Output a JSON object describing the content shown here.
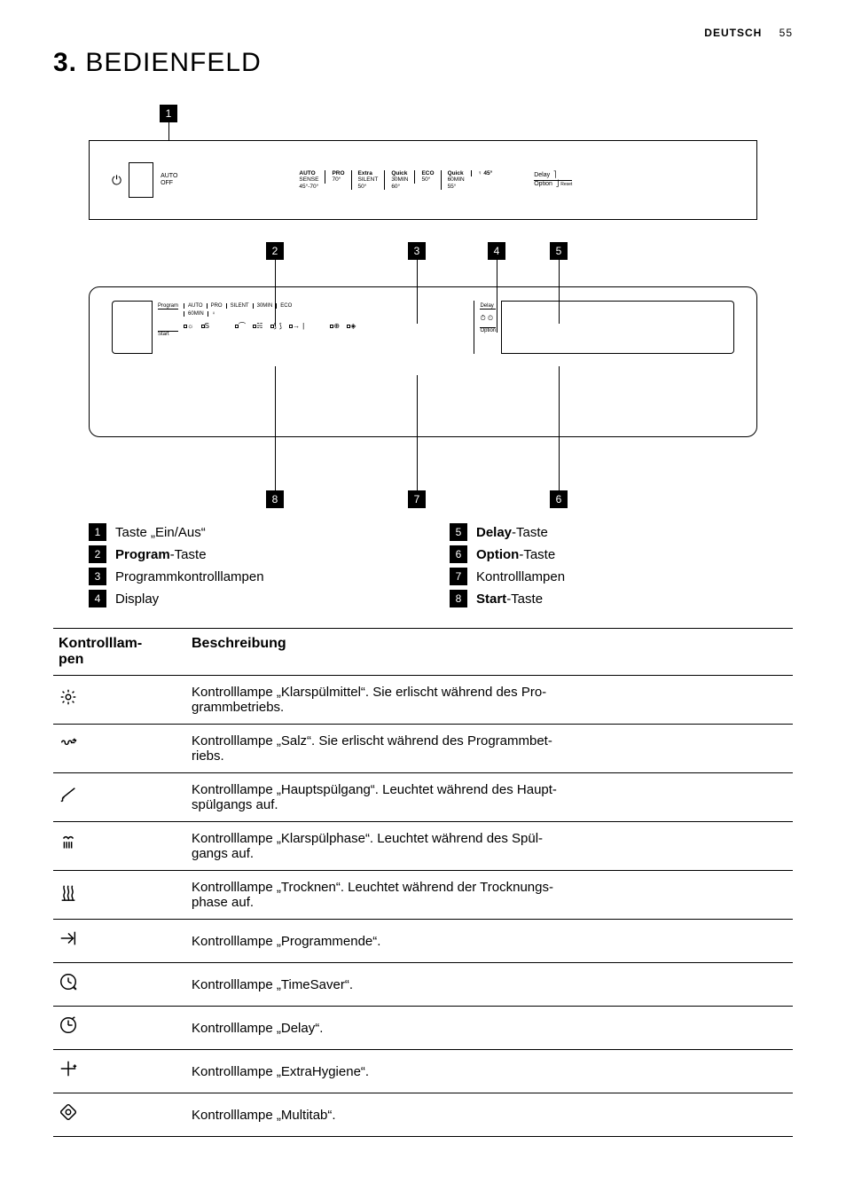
{
  "header": {
    "lang": "DEUTSCH",
    "page": "55"
  },
  "title": {
    "num": "3.",
    "text": " BEDIENFELD"
  },
  "panel": {
    "auto_off": "AUTO\nOFF",
    "programs": [
      {
        "l1": "AUTO",
        "l2": "SENSE",
        "l3": "45°-70°"
      },
      {
        "l1": "PRO",
        "l2": "70°",
        "l3": ""
      },
      {
        "l1": "Extra",
        "l2": "SILENT",
        "l3": "50°"
      },
      {
        "l1": "Quick",
        "l2": "30MIN",
        "l3": "60°"
      },
      {
        "l1": "ECO",
        "l2": "50°",
        "l3": ""
      },
      {
        "l1": "Quick",
        "l2": "60MIN",
        "l3": "55°"
      },
      {
        "l1": "♀ 45°",
        "l2": "",
        "l3": ""
      }
    ],
    "delay": "Delay",
    "option": "Option",
    "reset": "Reset"
  },
  "markers": {
    "m1": "1",
    "m2": "2",
    "m3": "3",
    "m4": "4",
    "m5": "5",
    "m6": "6",
    "m7": "7",
    "m8": "8"
  },
  "display": {
    "program_lbl": "Program",
    "start_lbl": "Start",
    "delay_lbl": "Delay",
    "option_lbl": "Option",
    "row1": [
      "AUTO",
      "PRO",
      "SILENT",
      "30MIN",
      "ECO"
    ],
    "row2": [
      "60MIN",
      "♀"
    ],
    "icons_row": "☼  ⟆     ⌒  ⛆  ⟆⟆⟆  →|     ⏱  ⊕  ◈"
  },
  "legend": {
    "left": [
      {
        "n": "1",
        "html": "Taste „Ein/Aus“"
      },
      {
        "n": "2",
        "html": "<b>Program</b>-Taste"
      },
      {
        "n": "3",
        "html": "Programmkontrolllampen"
      },
      {
        "n": "4",
        "html": "Display"
      }
    ],
    "right": [
      {
        "n": "5",
        "html": "<b>Delay</b>-Taste"
      },
      {
        "n": "6",
        "html": "<b>Option</b>-Taste"
      },
      {
        "n": "7",
        "html": "Kontrolllampen"
      },
      {
        "n": "8",
        "html": "<b>Start</b>-Taste"
      }
    ]
  },
  "table": {
    "h1": "Kontrolllam-\npen",
    "h2": "Beschreibung",
    "rows": [
      {
        "icon": "rinse",
        "desc": "Kontrolllampe „Klarspülmittel“. Sie erlischt während des Pro-\ngrammbetriebs."
      },
      {
        "icon": "salt",
        "desc": "Kontrolllampe „Salz“. Sie erlischt während des Programmbet-\nriebs."
      },
      {
        "icon": "wash",
        "desc": "Kontrolllampe „Hauptspülgang“. Leuchtet während des Haupt-\nspülgangs auf."
      },
      {
        "icon": "rinsep",
        "desc": "Kontrolllampe „Klarspülphase“. Leuchtet während des Spül-\ngangs auf."
      },
      {
        "icon": "dry",
        "desc": "Kontrolllampe „Trocknen“. Leuchtet während der Trocknungs-\nphase auf."
      },
      {
        "icon": "end",
        "desc": "Kontrolllampe „Programmende“."
      },
      {
        "icon": "timesv",
        "desc": "Kontrolllampe „TimeSaver“."
      },
      {
        "icon": "delay",
        "desc": "Kontrolllampe „Delay“."
      },
      {
        "icon": "hyg",
        "desc": "Kontrolllampe „ExtraHygiene“."
      },
      {
        "icon": "multi",
        "desc": "Kontrolllampe „Multitab“."
      }
    ]
  },
  "colors": {
    "fg": "#000000",
    "bg": "#ffffff"
  }
}
